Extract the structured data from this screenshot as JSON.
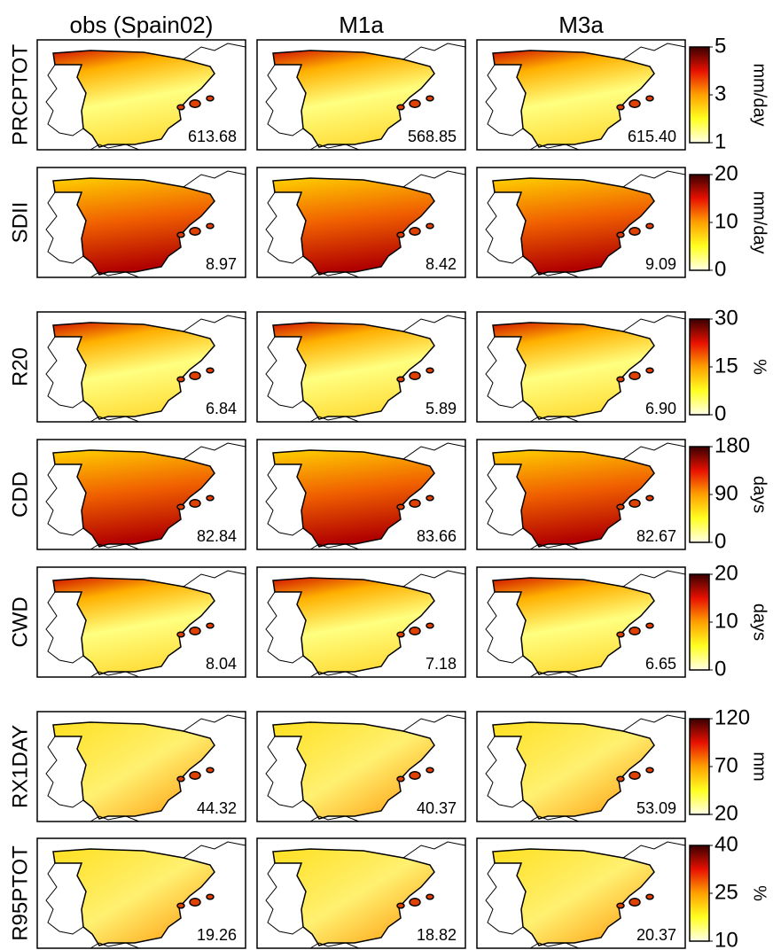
{
  "columns": [
    "obs (Spain02)",
    "M1a",
    "M3a"
  ],
  "rows": [
    {
      "label": "PRCPTOT",
      "means": [
        "613.68",
        "568.85",
        "615.40"
      ],
      "colorbar": {
        "lim": [
          1,
          5
        ],
        "ticks": [
          1,
          3,
          5
        ],
        "unit": "mm/day"
      }
    },
    {
      "label": "SDII",
      "means": [
        "8.97",
        "8.42",
        "9.09"
      ],
      "colorbar": {
        "lim": [
          0,
          20
        ],
        "ticks": [
          0,
          10,
          20
        ],
        "unit": "mm/day"
      }
    },
    {
      "label": "R20",
      "means": [
        "6.84",
        "5.89",
        "6.90"
      ],
      "colorbar": {
        "lim": [
          0,
          30
        ],
        "ticks": [
          0,
          15,
          30
        ],
        "unit": "%"
      }
    },
    {
      "label": "CDD",
      "means": [
        "82.84",
        "83.66",
        "82.67"
      ],
      "colorbar": {
        "lim": [
          0,
          180
        ],
        "ticks": [
          0,
          90,
          180
        ],
        "unit": "days"
      }
    },
    {
      "label": "CWD",
      "means": [
        "8.04",
        "7.18",
        "6.65"
      ],
      "colorbar": {
        "lim": [
          0,
          20
        ],
        "ticks": [
          0,
          10,
          20
        ],
        "unit": "days"
      }
    },
    {
      "label": "RX1DAY",
      "means": [
        "44.32",
        "40.37",
        "53.09"
      ],
      "colorbar": {
        "lim": [
          20,
          120
        ],
        "ticks": [
          20,
          70,
          120
        ],
        "unit": "mm"
      }
    },
    {
      "label": "R95PTOT",
      "means": [
        "19.26",
        "18.82",
        "20.37"
      ],
      "colorbar": {
        "lim": [
          10,
          40
        ],
        "ticks": [
          10,
          25,
          40
        ],
        "unit": "%"
      }
    }
  ]
}
